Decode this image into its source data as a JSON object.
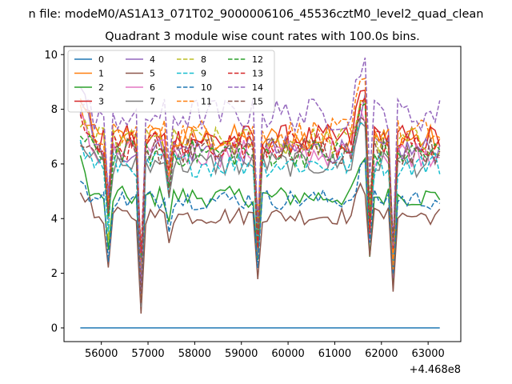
{
  "chart_data": {
    "type": "line",
    "suptitle": "n file: modeM0/AS1A13_071T02_9000006106_45536cztM0_level2_quad_clean",
    "title": "Quadrant 3 module wise count rates with 100.0s bins.",
    "xlabel": "",
    "ylabel": "",
    "x_offset_label": "+4.468e8",
    "xlim": [
      55200,
      63700
    ],
    "ylim": [
      -0.5,
      10.3
    ],
    "x_ticks": [
      56000,
      57000,
      58000,
      59000,
      60000,
      61000,
      62000,
      63000
    ],
    "y_ticks": [
      0,
      2,
      4,
      6,
      8,
      10
    ],
    "grid": false,
    "legend_position": "top-left",
    "x_start": 55550,
    "x_end": 63250,
    "x_step": 100,
    "dips": [
      {
        "x": 56150,
        "depth": 0.4
      },
      {
        "x": 56850,
        "depth": 0.75
      },
      {
        "x": 57450,
        "depth": 0.2
      },
      {
        "x": 59350,
        "depth": 0.5
      },
      {
        "x": 61750,
        "depth": 0.45
      },
      {
        "x": 62250,
        "depth": 0.65
      }
    ],
    "bumps": [
      {
        "x": 61600,
        "height": 0.3
      }
    ],
    "series": [
      {
        "name": "0",
        "color": "#1f77b4",
        "dash": "solid",
        "level": 0.0,
        "start": 0.0
      },
      {
        "name": "1",
        "color": "#ff7f0e",
        "dash": "solid",
        "level": 6.9,
        "start": 8.0
      },
      {
        "name": "2",
        "color": "#2ca02c",
        "dash": "solid",
        "level": 4.8,
        "start": 6.0
      },
      {
        "name": "3",
        "color": "#d62728",
        "dash": "solid",
        "level": 6.9,
        "start": 8.6
      },
      {
        "name": "4",
        "color": "#9467bd",
        "dash": "solid",
        "level": 6.5,
        "start": 9.0
      },
      {
        "name": "5",
        "color": "#8c564b",
        "dash": "solid",
        "level": 4.1,
        "start": 5.2
      },
      {
        "name": "6",
        "color": "#e377c2",
        "dash": "solid",
        "level": 6.4,
        "start": 7.6
      },
      {
        "name": "7",
        "color": "#7f7f7f",
        "dash": "solid",
        "level": 6.0,
        "start": 7.2
      },
      {
        "name": "8",
        "color": "#bcbd22",
        "dash": "dashed",
        "level": 6.8,
        "start": 7.7
      },
      {
        "name": "9",
        "color": "#17becf",
        "dash": "dashed",
        "level": 6.0,
        "start": 6.6
      },
      {
        "name": "10",
        "color": "#1f77b4",
        "dash": "dashed",
        "level": 4.7,
        "start": 5.4
      },
      {
        "name": "11",
        "color": "#ff7f0e",
        "dash": "dashed",
        "level": 7.1,
        "start": 7.9
      },
      {
        "name": "12",
        "color": "#2ca02c",
        "dash": "dashed",
        "level": 6.4,
        "start": 6.9
      },
      {
        "name": "13",
        "color": "#d62728",
        "dash": "dashed",
        "level": 6.7,
        "start": 7.5
      },
      {
        "name": "14",
        "color": "#9467bd",
        "dash": "dashed",
        "level": 7.8,
        "start": 8.1
      },
      {
        "name": "15",
        "color": "#8c564b",
        "dash": "dashed",
        "level": 6.5,
        "start": 7.0
      }
    ]
  }
}
